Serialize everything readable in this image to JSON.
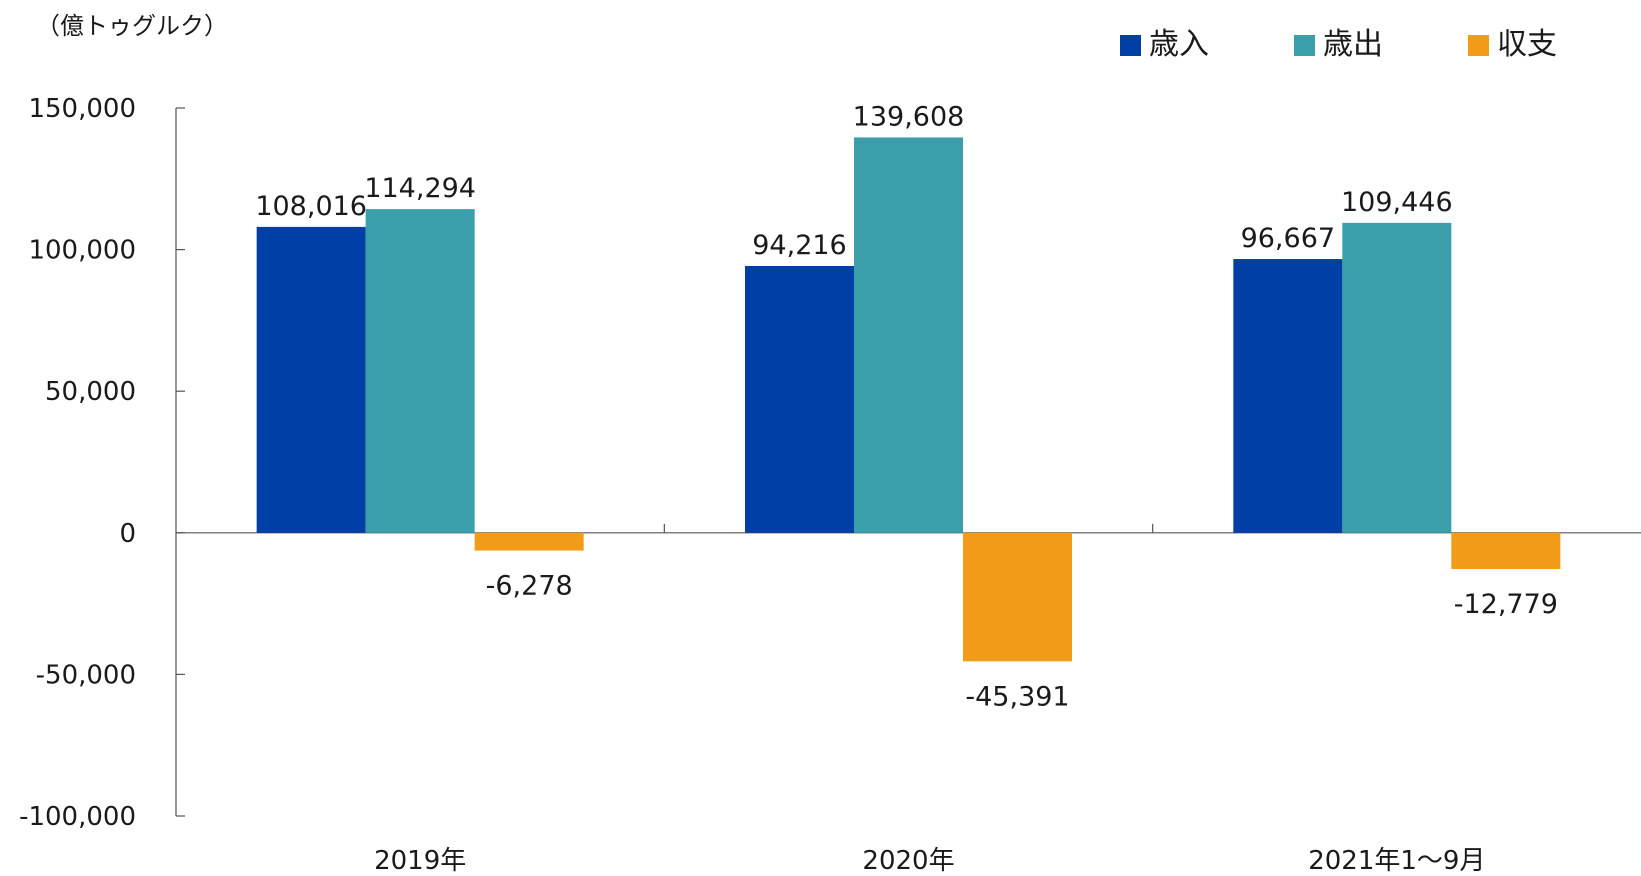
{
  "chart_data": {
    "type": "bar",
    "unit_label": "（億トゥグルク）",
    "categories": [
      "2019年",
      "2020年",
      "2021年1～9月"
    ],
    "series": [
      {
        "name": "歳入",
        "color": "#003FA5",
        "values": [
          108016,
          94216,
          96667
        ],
        "labels": [
          "108,016",
          "94,216",
          "96,667"
        ]
      },
      {
        "name": "歳出",
        "color": "#3A9FAA",
        "values": [
          114294,
          139608,
          109446
        ],
        "labels": [
          "114,294",
          "139,608",
          "109,446"
        ]
      },
      {
        "name": "収支",
        "color": "#F29B19",
        "values": [
          -6278,
          -45391,
          -12779
        ],
        "labels": [
          "-6,278",
          "-45,391",
          "-12,779"
        ]
      }
    ],
    "y_ticks": [
      150000,
      100000,
      50000,
      0,
      -50000,
      -100000
    ],
    "y_tick_labels": [
      "150,000",
      "100,000",
      "50,000",
      "0",
      "-50,000",
      "-100,000"
    ],
    "ylim": [
      -100000,
      150000
    ],
    "grid": false,
    "legend_position": "top-right"
  }
}
